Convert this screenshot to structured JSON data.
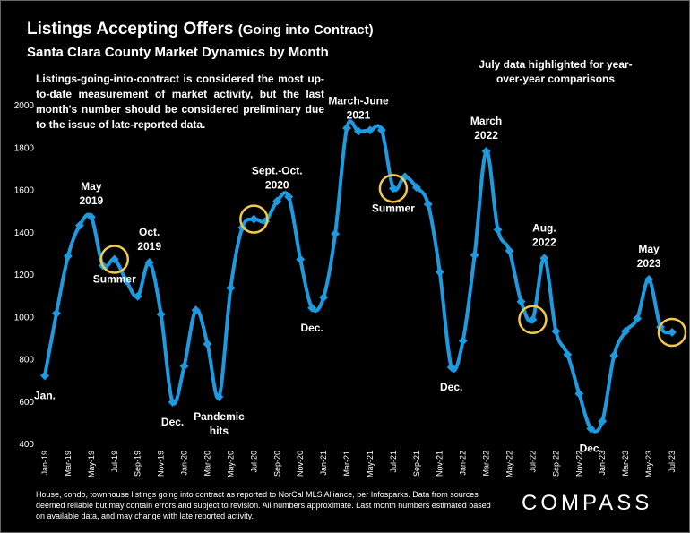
{
  "title": "Listings Accepting Offers",
  "title_paren": "(Going into Contract)",
  "subtitle": "Santa Clara County Market Dynamics by Month",
  "note": "Listings-going-into-contract is considered the most up-to-date measurement of market activity, but the last month's number should be considered preliminary due to the issue of late-reported data.",
  "july_note": "July data highlighted for year-over-year comparisons",
  "footnote": "House, condo, townhouse listings going into contract as reported to NorCal MLS Alliance, per Infosparks. Data from sources deemed reliable but may contain errors and subject to revision. All numbers approximate. Last month numbers estimated based on available data, and may change with late reported activity.",
  "logo": "COMPASS",
  "colors": {
    "line": "#1E9BE0",
    "highlight": "#F2C84B",
    "background": "#000000"
  },
  "chart_data": {
    "type": "line",
    "x": [
      "Jan-19",
      "Feb-19",
      "Mar-19",
      "Apr-19",
      "May-19",
      "Jun-19",
      "Jul-19",
      "Aug-19",
      "Sep-19",
      "Oct-19",
      "Nov-19",
      "Dec-19",
      "Jan-20",
      "Feb-20",
      "Mar-20",
      "Apr-20",
      "May-20",
      "Jun-20",
      "Jul-20",
      "Aug-20",
      "Sep-20",
      "Oct-20",
      "Nov-20",
      "Dec-20",
      "Jan-21",
      "Feb-21",
      "Mar-21",
      "Apr-21",
      "May-21",
      "Jun-21",
      "Jul-21",
      "Aug-21",
      "Sep-21",
      "Oct-21",
      "Nov-21",
      "Dec-21",
      "Jan-22",
      "Feb-22",
      "Mar-22",
      "Apr-22",
      "May-22",
      "Jun-22",
      "Jul-22",
      "Aug-22",
      "Sep-22",
      "Oct-22",
      "Nov-22",
      "Dec-22",
      "Jan-23",
      "Feb-23",
      "Mar-23",
      "Apr-23",
      "May-23",
      "Jun-23",
      "Jul-23"
    ],
    "values": [
      720,
      1015,
      1285,
      1430,
      1470,
      1240,
      1270,
      1170,
      1095,
      1255,
      1010,
      595,
      765,
      1030,
      870,
      620,
      1135,
      1420,
      1460,
      1450,
      1545,
      1565,
      1270,
      1040,
      1090,
      1390,
      1890,
      1875,
      1880,
      1880,
      1605,
      1660,
      1610,
      1530,
      1210,
      760,
      885,
      1290,
      1780,
      1410,
      1310,
      1070,
      985,
      1275,
      930,
      820,
      635,
      470,
      505,
      815,
      930,
      990,
      1175,
      950,
      925
    ],
    "xtick_labels": [
      "Jan-19",
      "Mar-19",
      "May-19",
      "Jul-19",
      "Sep-19",
      "Nov-19",
      "Jan-20",
      "Mar-20",
      "May-20",
      "Jul-20",
      "Sep-20",
      "Nov-20",
      "Jan-21",
      "Mar-21",
      "May-21",
      "Jul-21",
      "Sep-21",
      "Nov-21",
      "Jan-22",
      "Mar-22",
      "May-22",
      "Jul-22",
      "Sep-22",
      "Nov-22",
      "Jan-23",
      "Mar-23",
      "May-23",
      "Jul-23"
    ],
    "yticks": [
      400,
      600,
      800,
      1000,
      1200,
      1400,
      1600,
      1800,
      2000
    ],
    "ylim": [
      400,
      2000
    ],
    "grid": false,
    "highlighted": [
      "Jul-19",
      "Jul-20",
      "Jul-21",
      "Jul-22",
      "Jul-23"
    ],
    "annotations": [
      {
        "at": "Jan-19",
        "lines": [
          "Jan."
        ],
        "pos": "below"
      },
      {
        "at": "May-19",
        "lines": [
          "May",
          "2019"
        ],
        "pos": "above"
      },
      {
        "at": "Jul-19",
        "lines": [
          "Summer"
        ],
        "pos": "below"
      },
      {
        "at": "Oct-19",
        "lines": [
          "Oct.",
          "2019"
        ],
        "pos": "above"
      },
      {
        "at": "Dec-19",
        "lines": [
          "Dec."
        ],
        "pos": "below"
      },
      {
        "at": "Apr-20",
        "lines": [
          "Pandemic",
          "hits"
        ],
        "pos": "below"
      },
      {
        "at": "Sep-20",
        "lines": [
          "Sept.-Oct.",
          "2020"
        ],
        "pos": "above"
      },
      {
        "at": "Dec-20",
        "lines": [
          "Dec."
        ],
        "pos": "below"
      },
      {
        "at": "Apr-21",
        "lines": [
          "March-June",
          "2021"
        ],
        "pos": "above"
      },
      {
        "at": "Jul-21",
        "lines": [
          "Summer"
        ],
        "pos": "below"
      },
      {
        "at": "Dec-21",
        "lines": [
          "Dec."
        ],
        "pos": "below"
      },
      {
        "at": "Mar-22",
        "lines": [
          "March",
          "2022"
        ],
        "pos": "above"
      },
      {
        "at": "Aug-22",
        "lines": [
          "Aug.",
          "2022"
        ],
        "pos": "above"
      },
      {
        "at": "Dec-22",
        "lines": [
          "Dec."
        ],
        "pos": "below"
      },
      {
        "at": "May-23",
        "lines": [
          "May",
          "2023"
        ],
        "pos": "above"
      }
    ]
  }
}
